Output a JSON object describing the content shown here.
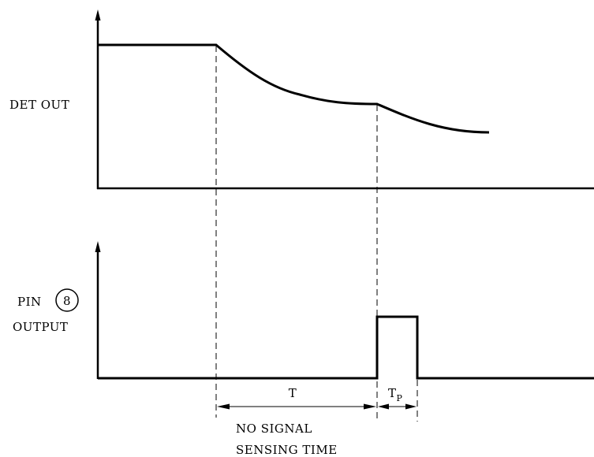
{
  "labels": {
    "det_out": "DET OUT",
    "pin_prefix": "PIN",
    "pin_number": "8",
    "output": "OUTPUT",
    "t": "T",
    "tp_main": "T",
    "tp_sub": "P",
    "caption_line1": "NO SIGNAL",
    "caption_line2": "SENSING TIME"
  }
}
